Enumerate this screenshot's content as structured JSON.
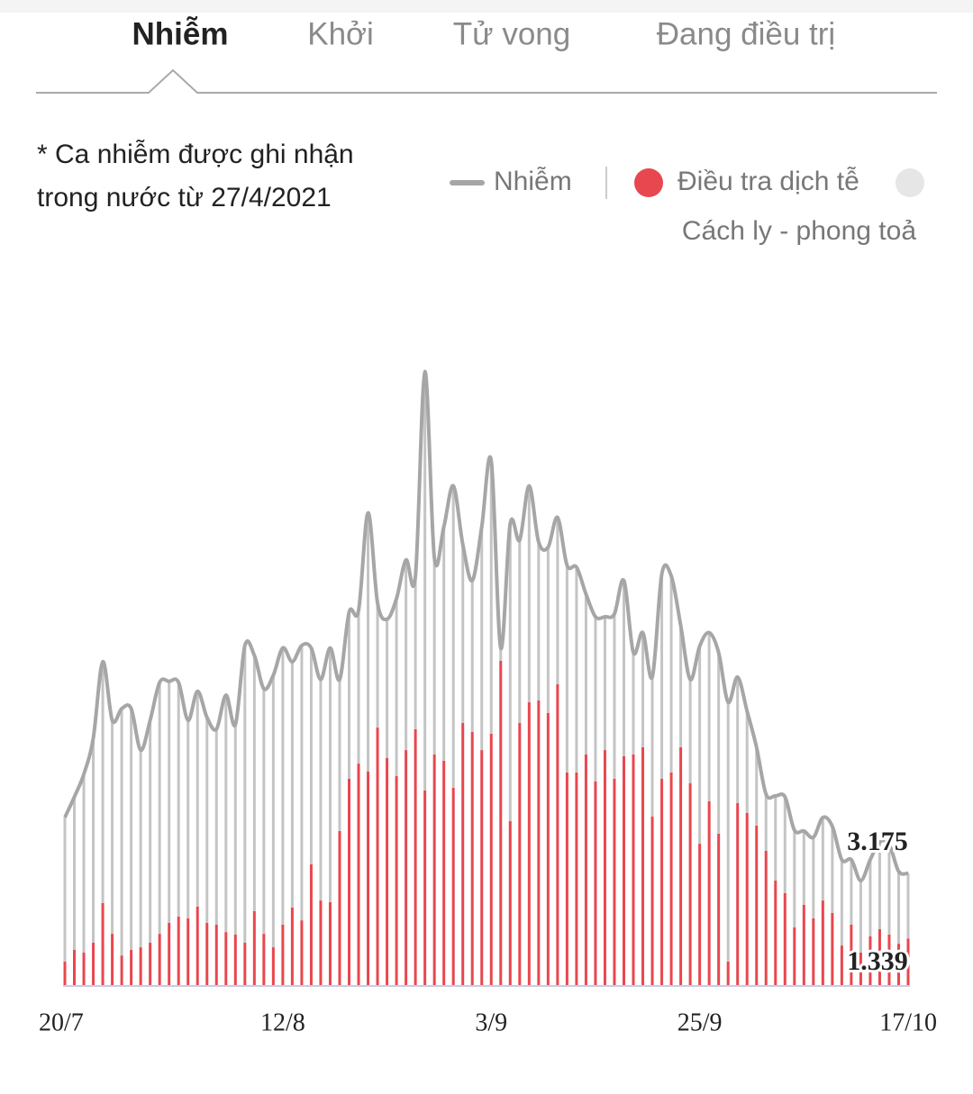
{
  "tabs": {
    "items": [
      "Nhiễm",
      "Khởi",
      "Tử vong",
      "Đang điều trị"
    ],
    "active": 0
  },
  "note": [
    "* Ca nhiễm được ghi nhận",
    "trong nước từ 27/4/2021"
  ],
  "chart_data": {
    "type": "line-stacked-bar",
    "categories": [
      "20/7",
      null,
      null,
      null,
      null,
      null,
      null,
      null,
      null,
      null,
      null,
      null,
      null,
      null,
      null,
      null,
      null,
      null,
      null,
      null,
      null,
      null,
      null,
      "12/8",
      null,
      null,
      null,
      null,
      null,
      null,
      null,
      null,
      null,
      null,
      null,
      null,
      null,
      null,
      null,
      null,
      null,
      null,
      null,
      null,
      null,
      "3/9",
      null,
      null,
      null,
      null,
      null,
      null,
      null,
      null,
      null,
      null,
      null,
      null,
      null,
      null,
      null,
      null,
      null,
      null,
      null,
      null,
      null,
      "25/9",
      null,
      null,
      null,
      null,
      null,
      null,
      null,
      null,
      null,
      null,
      null,
      null,
      null,
      null,
      null,
      null,
      null,
      null,
      null,
      null,
      null,
      "17/10"
    ],
    "ylim": [
      0,
      18000
    ],
    "series": [
      {
        "name": "Nhiễm",
        "color": "#a6a6a6",
        "kind": "line",
        "values": [
          4750,
          5330,
          5970,
          6990,
          9140,
          7490,
          7820,
          7820,
          6650,
          7490,
          8560,
          8590,
          8560,
          7490,
          8310,
          7570,
          7240,
          8200,
          7370,
          9600,
          9320,
          8380,
          8760,
          9530,
          9140,
          9600,
          9530,
          8640,
          9530,
          8640,
          10540,
          10590,
          13340,
          10800,
          10340,
          10920,
          12010,
          11560,
          17320,
          12070,
          12950,
          14100,
          12450,
          11430,
          12950,
          14810,
          9530,
          13030,
          12570,
          14100,
          12520,
          12370,
          13210,
          11860,
          11810,
          11050,
          10410,
          10410,
          10490,
          11430,
          9400,
          9960,
          8710,
          11610,
          11560,
          10160,
          8640,
          9580,
          9960,
          9400,
          8000,
          8710,
          7750,
          6730,
          5410,
          5360,
          5330,
          4390,
          4370,
          4190,
          4750,
          4500,
          3560,
          3560,
          2970,
          3560,
          4060,
          3990,
          3230,
          3175
        ],
        "value_labels": [
          null,
          null,
          null,
          null,
          null,
          null,
          null,
          null,
          null,
          null,
          null,
          null,
          null,
          null,
          null,
          null,
          null,
          null,
          null,
          null,
          null,
          null,
          null,
          null,
          null,
          null,
          null,
          null,
          null,
          null,
          null,
          null,
          null,
          null,
          null,
          null,
          null,
          null,
          null,
          null,
          null,
          null,
          null,
          null,
          null,
          null,
          null,
          null,
          null,
          null,
          null,
          null,
          null,
          null,
          null,
          null,
          null,
          null,
          null,
          null,
          null,
          null,
          null,
          null,
          null,
          null,
          null,
          null,
          null,
          null,
          null,
          null,
          null,
          null,
          null,
          null,
          null,
          null,
          null,
          null,
          null,
          null,
          null,
          null,
          null,
          null,
          null,
          null,
          null,
          "3.175"
        ]
      },
      {
        "name": "Điều tra dịch tễ",
        "color": "#e8474f",
        "kind": "bar",
        "values": [
          690,
          1020,
          940,
          1220,
          2340,
          1470,
          860,
          1020,
          1090,
          1220,
          1470,
          1780,
          1960,
          1910,
          2240,
          1780,
          1730,
          1520,
          1450,
          1220,
          2110,
          1470,
          1090,
          1730,
          2210,
          1850,
          3430,
          2410,
          2360,
          4370,
          5840,
          6270,
          6050,
          7290,
          6430,
          5920,
          6650,
          7240,
          5510,
          6530,
          6350,
          5590,
          7420,
          7160,
          6650,
          7110,
          9170,
          4650,
          7420,
          8000,
          8050,
          7700,
          8510,
          6020,
          6020,
          6530,
          5770,
          6650,
          5840,
          6480,
          6530,
          6730,
          4780,
          5840,
          6020,
          6730,
          5720,
          4010,
          5210,
          4290,
          690,
          5160,
          4880,
          4520,
          3810,
          2970,
          2620,
          1650,
          2290,
          1910,
          2410,
          2060,
          1140,
          1730,
          940,
          1400,
          1600,
          1450,
          1190,
          1339
        ],
        "value_labels": [
          null,
          null,
          null,
          null,
          null,
          null,
          null,
          null,
          null,
          null,
          null,
          null,
          null,
          null,
          null,
          null,
          null,
          null,
          null,
          null,
          null,
          null,
          null,
          null,
          null,
          null,
          null,
          null,
          null,
          null,
          null,
          null,
          null,
          null,
          null,
          null,
          null,
          null,
          null,
          null,
          null,
          null,
          null,
          null,
          null,
          null,
          null,
          null,
          null,
          null,
          null,
          null,
          null,
          null,
          null,
          null,
          null,
          null,
          null,
          null,
          null,
          null,
          null,
          null,
          null,
          null,
          null,
          null,
          null,
          null,
          null,
          null,
          null,
          null,
          null,
          null,
          null,
          null,
          null,
          null,
          null,
          null,
          null,
          null,
          null,
          null,
          null,
          null,
          null,
          "1.339"
        ]
      },
      {
        "name": "Cách ly - phong toả",
        "color": "#c4c4c4",
        "legend_color": "#e6e6e6",
        "kind": "bar",
        "values": [
          4060,
          4310,
          5030,
          5770,
          6800,
          6020,
          6960,
          6800,
          5560,
          6270,
          7090,
          6810,
          6600,
          5580,
          6070,
          5790,
          5510,
          6680,
          5920,
          8380,
          7210,
          6910,
          7670,
          7800,
          6930,
          7750,
          6100,
          6230,
          7170,
          4270,
          4700,
          4320,
          7290,
          3510,
          3910,
          5000,
          5360,
          4320,
          11810,
          5540,
          6600,
          8510,
          5030,
          4270,
          6300,
          7700,
          360,
          8380,
          5150,
          6100,
          4470,
          4670,
          4700,
          5840,
          5790,
          4520,
          4640,
          3760,
          4650,
          4950,
          2870,
          3230,
          3930,
          5770,
          5540,
          3430,
          2920,
          5570,
          4750,
          5110,
          7310,
          3550,
          2870,
          2210,
          1600,
          2390,
          2710,
          2740,
          2080,
          2280,
          2340,
          2440,
          2420,
          1830,
          2030,
          2160,
          2460,
          2540,
          2040,
          1836
        ]
      }
    ]
  }
}
